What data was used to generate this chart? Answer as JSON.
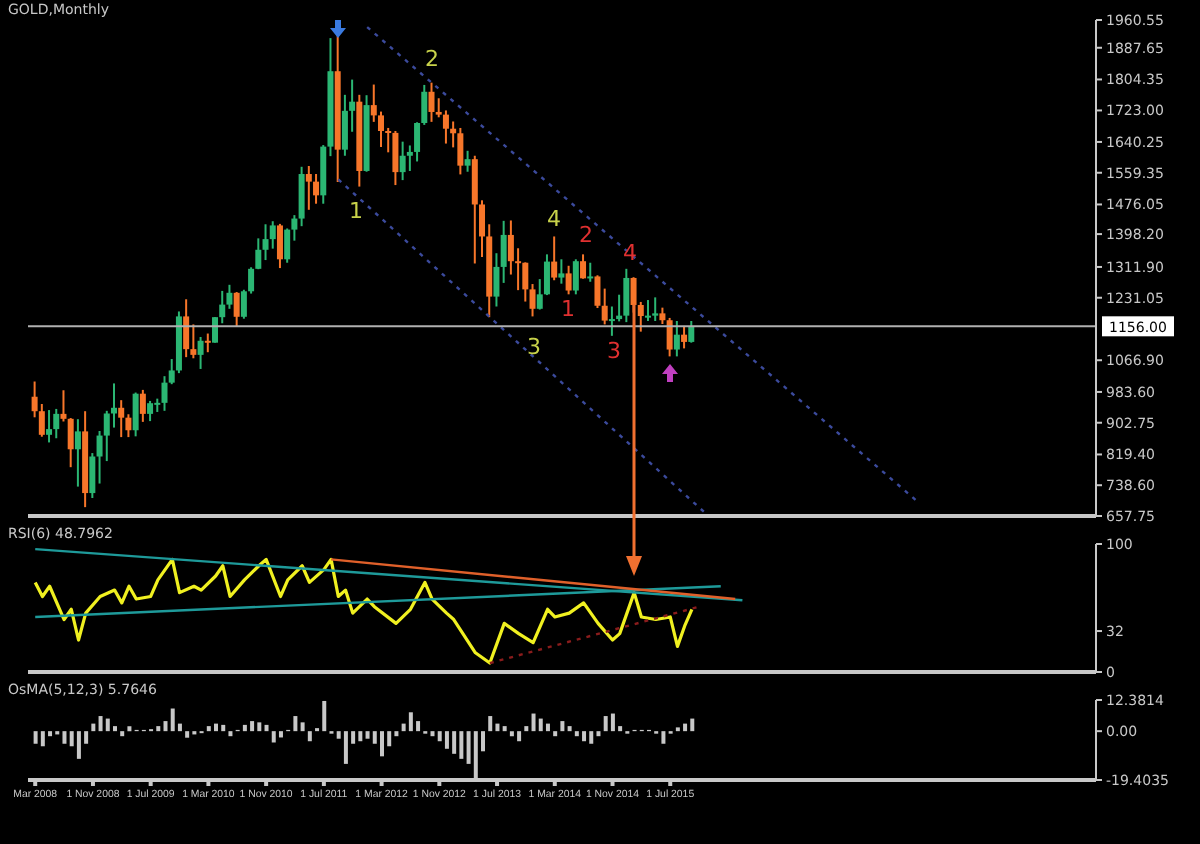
{
  "chart_data": [
    {
      "type": "candlestick",
      "title": "GOLD,Monthly",
      "x": [
        "2008-03",
        "2008-04",
        "2008-05",
        "2008-06",
        "2008-07",
        "2008-08",
        "2008-09",
        "2008-10",
        "2008-11",
        "2008-12",
        "2009-01",
        "2009-02",
        "2009-03",
        "2009-04",
        "2009-05",
        "2009-06",
        "2009-07",
        "2009-08",
        "2009-09",
        "2009-10",
        "2009-11",
        "2009-12",
        "2010-01",
        "2010-02",
        "2010-03",
        "2010-04",
        "2010-05",
        "2010-06",
        "2010-07",
        "2010-08",
        "2010-09",
        "2010-10",
        "2010-11",
        "2010-12",
        "2011-01",
        "2011-02",
        "2011-03",
        "2011-04",
        "2011-05",
        "2011-06",
        "2011-07",
        "2011-08",
        "2011-09",
        "2011-10",
        "2011-11",
        "2011-12",
        "2012-01",
        "2012-02",
        "2012-03",
        "2012-04",
        "2012-05",
        "2012-06",
        "2012-07",
        "2012-08",
        "2012-09",
        "2012-10",
        "2012-11",
        "2012-12",
        "2013-01",
        "2013-02",
        "2013-03",
        "2013-04",
        "2013-05",
        "2013-06",
        "2013-07",
        "2013-08",
        "2013-09",
        "2013-10",
        "2013-11",
        "2013-12",
        "2014-01",
        "2014-02",
        "2014-03",
        "2014-04",
        "2014-05",
        "2014-06",
        "2014-07",
        "2014-08",
        "2014-09",
        "2014-10",
        "2014-11",
        "2014-12",
        "2015-01",
        "2015-02",
        "2015-03",
        "2015-04",
        "2015-05",
        "2015-06",
        "2015-07",
        "2015-08",
        "2015-09",
        "2015-10"
      ],
      "ohlc": [
        [
          971,
          1011,
          917,
          933
        ],
        [
          933,
          952,
          866,
          871
        ],
        [
          871,
          936,
          851,
          886
        ],
        [
          886,
          939,
          862,
          926
        ],
        [
          926,
          988,
          906,
          913
        ],
        [
          913,
          915,
          786,
          833
        ],
        [
          833,
          912,
          735,
          880
        ],
        [
          880,
          933,
          681,
          718
        ],
        [
          718,
          823,
          705,
          814
        ],
        [
          814,
          881,
          743,
          869
        ],
        [
          869,
          934,
          802,
          927
        ],
        [
          927,
          1006,
          890,
          942
        ],
        [
          942,
          962,
          865,
          916
        ],
        [
          916,
          925,
          865,
          883
        ],
        [
          883,
          982,
          867,
          979
        ],
        [
          979,
          989,
          905,
          926
        ],
        [
          926,
          960,
          907,
          954
        ],
        [
          954,
          966,
          931,
          955
        ],
        [
          955,
          1025,
          934,
          1008
        ],
        [
          1008,
          1070,
          1004,
          1040
        ],
        [
          1040,
          1195,
          1033,
          1182
        ],
        [
          1182,
          1227,
          1075,
          1096
        ],
        [
          1096,
          1161,
          1072,
          1081
        ],
        [
          1081,
          1128,
          1044,
          1118
        ],
        [
          1118,
          1137,
          1088,
          1113
        ],
        [
          1113,
          1180,
          1113,
          1180
        ],
        [
          1180,
          1249,
          1164,
          1213
        ],
        [
          1213,
          1265,
          1202,
          1244
        ],
        [
          1244,
          1246,
          1156,
          1181
        ],
        [
          1181,
          1252,
          1176,
          1248
        ],
        [
          1248,
          1311,
          1242,
          1307
        ],
        [
          1307,
          1387,
          1306,
          1357
        ],
        [
          1357,
          1424,
          1330,
          1385
        ],
        [
          1385,
          1432,
          1360,
          1421
        ],
        [
          1421,
          1425,
          1309,
          1332
        ],
        [
          1332,
          1413,
          1323,
          1410
        ],
        [
          1410,
          1448,
          1381,
          1439
        ],
        [
          1439,
          1575,
          1419,
          1556
        ],
        [
          1556,
          1577,
          1462,
          1536
        ],
        [
          1536,
          1556,
          1478,
          1500
        ],
        [
          1500,
          1632,
          1478,
          1628
        ],
        [
          1628,
          1913,
          1603,
          1826
        ],
        [
          1826,
          1920,
          1535,
          1620
        ],
        [
          1620,
          1764,
          1604,
          1722
        ],
        [
          1722,
          1804,
          1667,
          1746
        ],
        [
          1746,
          1764,
          1523,
          1564
        ],
        [
          1564,
          1763,
          1562,
          1737
        ],
        [
          1737,
          1791,
          1693,
          1710
        ],
        [
          1710,
          1720,
          1627,
          1669
        ],
        [
          1669,
          1677,
          1613,
          1664
        ],
        [
          1664,
          1669,
          1527,
          1561
        ],
        [
          1561,
          1641,
          1540,
          1604
        ],
        [
          1604,
          1631,
          1564,
          1614
        ],
        [
          1614,
          1692,
          1589,
          1690
        ],
        [
          1690,
          1790,
          1685,
          1772
        ],
        [
          1772,
          1796,
          1693,
          1719
        ],
        [
          1719,
          1755,
          1705,
          1712
        ],
        [
          1712,
          1723,
          1636,
          1675
        ],
        [
          1675,
          1694,
          1626,
          1663
        ],
        [
          1663,
          1677,
          1555,
          1578
        ],
        [
          1578,
          1617,
          1562,
          1595
        ],
        [
          1595,
          1604,
          1321,
          1476
        ],
        [
          1476,
          1487,
          1338,
          1392
        ],
        [
          1392,
          1424,
          1180,
          1234
        ],
        [
          1234,
          1348,
          1208,
          1312
        ],
        [
          1312,
          1433,
          1270,
          1396
        ],
        [
          1396,
          1434,
          1292,
          1327
        ],
        [
          1327,
          1361,
          1251,
          1323
        ],
        [
          1323,
          1324,
          1221,
          1253
        ],
        [
          1253,
          1267,
          1182,
          1202
        ],
        [
          1202,
          1280,
          1200,
          1240
        ],
        [
          1240,
          1345,
          1238,
          1326
        ],
        [
          1326,
          1392,
          1277,
          1284
        ],
        [
          1284,
          1332,
          1268,
          1295
        ],
        [
          1295,
          1315,
          1240,
          1250
        ],
        [
          1250,
          1332,
          1240,
          1327
        ],
        [
          1327,
          1345,
          1281,
          1282
        ],
        [
          1282,
          1323,
          1273,
          1287
        ],
        [
          1287,
          1290,
          1204,
          1210
        ],
        [
          1210,
          1255,
          1161,
          1171
        ],
        [
          1171,
          1208,
          1131,
          1175
        ],
        [
          1175,
          1239,
          1169,
          1184
        ],
        [
          1184,
          1307,
          1167,
          1283
        ],
        [
          1283,
          1285,
          1192,
          1212
        ],
        [
          1212,
          1220,
          1142,
          1183
        ],
        [
          1183,
          1225,
          1170,
          1184
        ],
        [
          1184,
          1232,
          1170,
          1190
        ],
        [
          1190,
          1205,
          1162,
          1172
        ],
        [
          1172,
          1178,
          1077,
          1095
        ],
        [
          1095,
          1170,
          1077,
          1134
        ],
        [
          1134,
          1157,
          1098,
          1115
        ],
        [
          1115,
          1170,
          1113,
          1156
        ]
      ],
      "colors": [
        "#f7762a",
        "#f7762a",
        "#2bb673",
        "#2bb673",
        "#f7762a",
        "#f7762a",
        "#2bb673",
        "#f7762a",
        "#2bb673",
        "#2bb673",
        "#2bb673",
        "#2bb673",
        "#f7762a",
        "#f7762a",
        "#2bb673",
        "#f7762a",
        "#2bb673",
        "#2bb673",
        "#2bb673",
        "#2bb673",
        "#2bb673",
        "#f7762a",
        "#f7762a",
        "#2bb673",
        "#f7762a",
        "#2bb673",
        "#2bb673",
        "#2bb673",
        "#f7762a",
        "#2bb673",
        "#2bb673",
        "#2bb673",
        "#2bb673",
        "#2bb673",
        "#f7762a",
        "#2bb673",
        "#2bb673",
        "#2bb673",
        "#f7762a",
        "#f7762a",
        "#2bb673",
        "#2bb673",
        "#f7762a",
        "#2bb673",
        "#2bb673",
        "#f7762a",
        "#2bb673",
        "#f7762a",
        "#f7762a",
        "#f7762a",
        "#f7762a",
        "#2bb673",
        "#2bb673",
        "#2bb673",
        "#2bb673",
        "#f7762a",
        "#f7762a",
        "#f7762a",
        "#f7762a",
        "#f7762a",
        "#2bb673",
        "#f7762a",
        "#f7762a",
        "#f7762a",
        "#2bb673",
        "#2bb673",
        "#f7762a",
        "#f7762a",
        "#f7762a",
        "#f7762a",
        "#2bb673",
        "#2bb673",
        "#f7762a",
        "#2bb673",
        "#f7762a",
        "#2bb673",
        "#f7762a",
        "#2bb673",
        "#f7762a",
        "#f7762a",
        "#2bb673",
        "#2bb673",
        "#2bb673",
        "#f7762a",
        "#f7762a",
        "#2bb673",
        "#2bb673",
        "#f7762a",
        "#f7762a",
        "#2bb673",
        "#f7762a",
        "#2bb673"
      ],
      "xlim": [
        "2008-02",
        "2020-06"
      ],
      "ylim": [
        657.75,
        1960.55
      ],
      "yticks": [
        657.75,
        {
          "value": 738.6,
          "label": "738.60"
        },
        {
          "value": 819.4,
          "label": "819.40"
        },
        902.75,
        {
          "value": 983.6,
          "label": "983.60"
        },
        {
          "value": 1066.9,
          "label": "1066.90"
        },
        1231.05,
        {
          "value": 1311.9,
          "label": "1311.90"
        },
        {
          "value": 1398.2,
          "label": "1398.20"
        },
        1476.05,
        1559.35,
        1640.25,
        {
          "value": 1723,
          "label": "1723.00"
        },
        1804.35,
        1887.65,
        1960.55
      ],
      "tick_labels": "y",
      "ref_lines": [
        {
          "axis": "y",
          "value": 1156,
          "label": "1156.00",
          "color": "#b0b0b0"
        }
      ],
      "annotations": [
        "1",
        "2",
        "3",
        "4",
        "1",
        "2",
        "3",
        "4"
      ],
      "series": [
        {
          "type": "line",
          "x": [
            "2012-01",
            "2018-05"
          ],
          "values": [
            1942,
            700
          ],
          "color": "#3b4a9c",
          "line_style": "dotted"
        },
        {
          "type": "line",
          "x": [
            "2011-09",
            "2015-12"
          ],
          "values": [
            1542,
            663
          ],
          "color": "#3b4a9c",
          "line_style": "dotted"
        }
      ]
    },
    {
      "type": "line",
      "title": "RSI(6) 48.7962",
      "xlim": [
        "2008-02",
        "2020-06"
      ],
      "ylim": [
        0,
        100
      ],
      "yticks": [
        0,
        32,
        100
      ],
      "tick_labels": "y",
      "series": [
        {
          "x": [
            "2008-03",
            "2008-04",
            "2008-05",
            "2008-07",
            "2008-08",
            "2008-09",
            "2008-10",
            "2008-12",
            "2009-02",
            "2009-03",
            "2009-04",
            "2009-05",
            "2009-07",
            "2009-08",
            "2009-10",
            "2009-11",
            "2010-01",
            "2010-02",
            "2010-04",
            "2010-05",
            "2010-06",
            "2010-08",
            "2010-10",
            "2010-11",
            "2011-01",
            "2011-02",
            "2011-04",
            "2011-05",
            "2011-07",
            "2011-08",
            "2011-09",
            "2011-10",
            "2011-11",
            "2012-01",
            "2012-02",
            "2012-05",
            "2012-07",
            "2012-09",
            "2012-10",
            "2012-12",
            "2013-01",
            "2013-04",
            "2013-06",
            "2013-08",
            "2013-10",
            "2013-12",
            "2014-02",
            "2014-03",
            "2014-05",
            "2014-07",
            "2014-09",
            "2014-11",
            "2014-12",
            "2015-02",
            "2015-03",
            "2015-05",
            "2015-07",
            "2015-08",
            "2015-09",
            "2015-10"
          ],
          "values": [
            70,
            59,
            67,
            41,
            49,
            25,
            46,
            59,
            64,
            54,
            67,
            57,
            59,
            72,
            88,
            62,
            67,
            64,
            75,
            83,
            59,
            72,
            83,
            88,
            59,
            72,
            83,
            70,
            80,
            88,
            59,
            64,
            46,
            57,
            51,
            38,
            49,
            70,
            57,
            46,
            41,
            15,
            7,
            38,
            30,
            23,
            49,
            43,
            46,
            54,
            38,
            25,
            30,
            62,
            43,
            41,
            43,
            20,
            36,
            49
          ],
          "color": "#f0f020"
        },
        {
          "x": [
            "2008-03",
            "2016-05"
          ],
          "values": [
            96,
            56
          ],
          "color": "#1e9a9a"
        },
        {
          "x": [
            "2008-03",
            "2016-02"
          ],
          "values": [
            43,
            67
          ],
          "color": "#1e9a9a"
        },
        {
          "x": [
            "2011-08",
            "2016-04"
          ],
          "values": [
            88,
            57
          ],
          "color": "#e0602a"
        },
        {
          "x": [
            "2013-06",
            "2015-11"
          ],
          "values": [
            7,
            51
          ],
          "color": "#8a1c1c",
          "line_style": "dotted"
        }
      ]
    },
    {
      "type": "bar",
      "title": "OsMA(5,12,3) 5.7646",
      "x": [
        "2008-03",
        "2008-04",
        "2008-05",
        "2008-06",
        "2008-07",
        "2008-08",
        "2008-09",
        "2008-10",
        "2008-11",
        "2008-12",
        "2009-01",
        "2009-02",
        "2009-03",
        "2009-04",
        "2009-05",
        "2009-06",
        "2009-07",
        "2009-08",
        "2009-09",
        "2009-10",
        "2009-11",
        "2009-12",
        "2010-01",
        "2010-02",
        "2010-03",
        "2010-04",
        "2010-05",
        "2010-06",
        "2010-07",
        "2010-08",
        "2010-09",
        "2010-10",
        "2010-11",
        "2010-12",
        "2011-01",
        "2011-02",
        "2011-03",
        "2011-04",
        "2011-05",
        "2011-06",
        "2011-07",
        "2011-08",
        "2011-09",
        "2011-10",
        "2011-11",
        "2011-12",
        "2012-01",
        "2012-02",
        "2012-03",
        "2012-04",
        "2012-05",
        "2012-06",
        "2012-07",
        "2012-08",
        "2012-09",
        "2012-10",
        "2012-11",
        "2012-12",
        "2013-01",
        "2013-02",
        "2013-03",
        "2013-04",
        "2013-05",
        "2013-06",
        "2013-07",
        "2013-08",
        "2013-09",
        "2013-10",
        "2013-11",
        "2013-12",
        "2014-01",
        "2014-02",
        "2014-03",
        "2014-04",
        "2014-05",
        "2014-06",
        "2014-07",
        "2014-08",
        "2014-09",
        "2014-10",
        "2014-11",
        "2014-12",
        "2015-01",
        "2015-02",
        "2015-03",
        "2015-04",
        "2015-05",
        "2015-06",
        "2015-07",
        "2015-08",
        "2015-09",
        "2015-10"
      ],
      "values": [
        -5,
        -6,
        -2,
        -1.3,
        -5,
        -6,
        -11,
        -5,
        3,
        6,
        5,
        2,
        -2,
        2,
        0.5,
        0.5,
        0.8,
        2,
        4,
        9,
        3,
        -2.6,
        -1.3,
        -0.8,
        2,
        3,
        2.5,
        -2,
        0.5,
        2.5,
        4,
        3.5,
        2.5,
        -4.5,
        -2.5,
        0.5,
        6,
        3.5,
        -4,
        1.2,
        12,
        -1,
        -3,
        -13,
        -5,
        -4,
        -3,
        -5,
        -10,
        -6,
        -2,
        3,
        7.5,
        4,
        -1,
        -2,
        -4,
        -7,
        -9,
        -11,
        -13,
        -19,
        -8,
        6,
        3,
        2,
        -2,
        -4,
        2,
        7,
        5,
        3,
        -2,
        4,
        2,
        -2,
        -4,
        -5,
        -2,
        6,
        7,
        2,
        -1,
        0.5,
        0.5,
        0.5,
        -1,
        -5,
        -1,
        1.5,
        3,
        5
      ],
      "color": "#c8c8c8",
      "xlim": [
        "2008-02",
        "2020-06"
      ],
      "ylim": [
        -19.4035,
        12.3814
      ],
      "yticks": [
        -19.4035,
        {
          "value": 0,
          "label": "0.00"
        },
        12.3814
      ],
      "xticks": [
        {
          "value": "2008-03",
          "label": "Mar 2008"
        },
        {
          "value": "2008-11",
          "label": "1 Nov 2008"
        },
        {
          "value": "2009-07",
          "label": "1 Jul 2009"
        },
        {
          "value": "2010-03",
          "label": "1 Mar 2010"
        },
        {
          "value": "2010-11",
          "label": "1 Nov 2010"
        },
        {
          "value": "2011-07",
          "label": "1 Jul 2011"
        },
        {
          "value": "2012-03",
          "label": "1 Mar 2012"
        },
        {
          "value": "2012-11",
          "label": "1 Nov 2012"
        },
        {
          "value": "2013-07",
          "label": "1 Jul 2013"
        },
        {
          "value": "2014-03",
          "label": "1 Mar 2014"
        },
        {
          "value": "2014-11",
          "label": "1 Nov 2014"
        },
        {
          "value": "2015-07",
          "label": "1 Jul 2015"
        }
      ]
    }
  ]
}
